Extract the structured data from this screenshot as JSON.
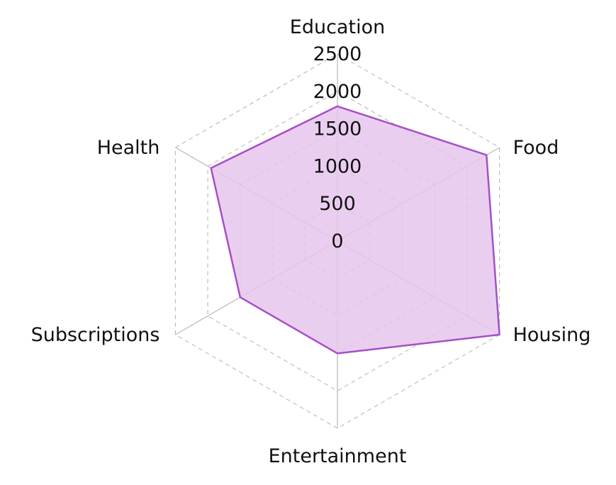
{
  "chart_data": {
    "type": "radar",
    "title": "",
    "axes": [
      "Education",
      "Food",
      "Housing",
      "Entertainment",
      "Subscriptions",
      "Health"
    ],
    "series": [
      {
        "values": [
          1800,
          2300,
          2500,
          1500,
          1500,
          1950
        ]
      }
    ],
    "r_range": [
      0,
      2500
    ],
    "r_ticks": [
      "0",
      "500",
      "1000",
      "1500",
      "2000",
      "2500"
    ],
    "r_tick_values": [
      0,
      500,
      1000,
      1500,
      2000,
      2500
    ],
    "grid": true,
    "colors": {
      "series_stroke": "#a64fc7",
      "series_fill": "#e6c6ec",
      "grid": "#bdbdbd",
      "spoke": "#b8b8b8"
    }
  }
}
